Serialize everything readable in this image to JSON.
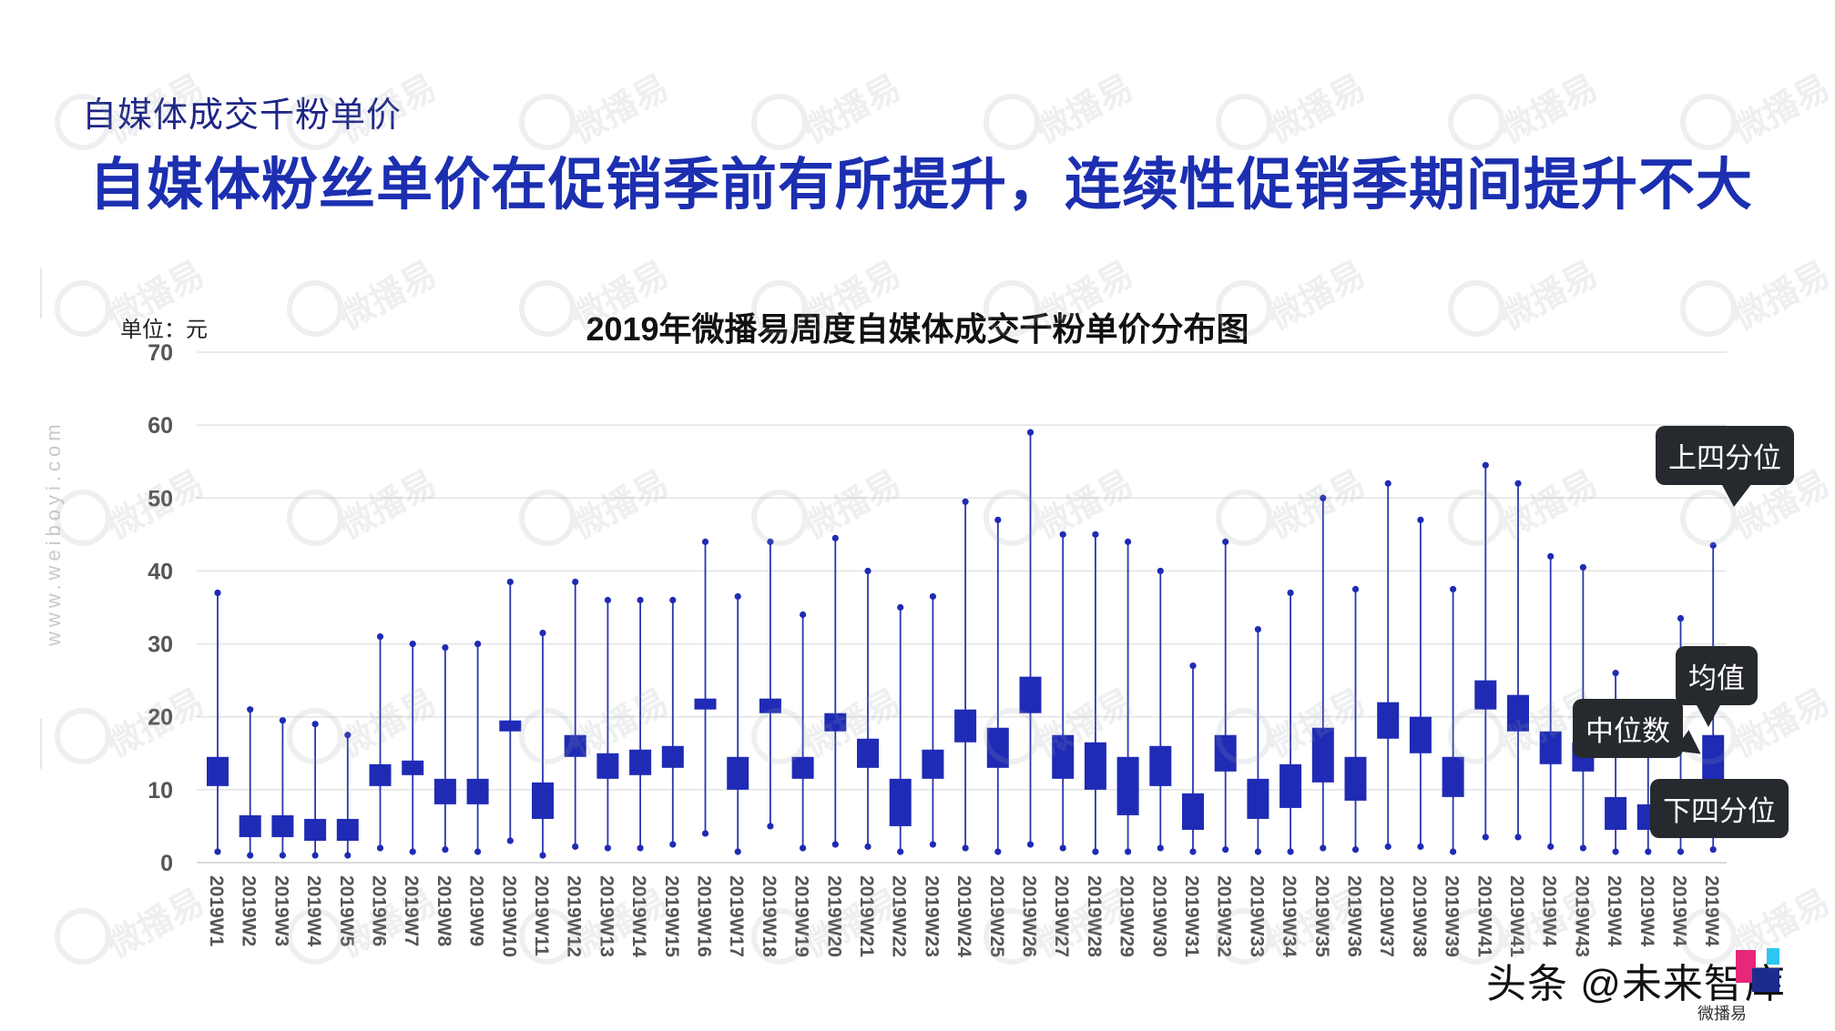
{
  "header": {
    "subtitle": "自媒体成交千粉单价",
    "headline": "自媒体粉丝单价在促销季前有所提升，连续性促销季期间提升不大"
  },
  "side_url": "www.weiboyi.com",
  "watermark_text": "微播易",
  "footer": {
    "brand": "头条 @未来智库",
    "small_text": "微播易"
  },
  "callouts": {
    "upper_quartile": "上四分位",
    "mean": "均值",
    "median": "中位数",
    "lower_quartile": "下四分位"
  },
  "colors": {
    "title_blue": "#1c2fb0",
    "box_fill": "#1f2bb5",
    "whisker": "#2a35b0",
    "grid": "#e3e3e3",
    "callout_bg": "#26292e"
  },
  "chart_data": {
    "type": "box",
    "title": "2019年微播易周度自媒体成交千粉单价分布图",
    "unit_label": "单位：元",
    "ylim": [
      0,
      70
    ],
    "yticks": [
      0,
      10,
      20,
      30,
      40,
      50,
      60,
      70
    ],
    "grid": true,
    "categories": [
      "2019W1",
      "2019W2",
      "2019W3",
      "2019W4",
      "2019W5",
      "2019W6",
      "2019W7",
      "2019W8",
      "2019W9",
      "2019W10",
      "2019W11",
      "2019W12",
      "2019W13",
      "2019W14",
      "2019W15",
      "2019W16",
      "2019W17",
      "2019W18",
      "2019W19",
      "2019W20",
      "2019W21",
      "2019W22",
      "2019W23",
      "2019W24",
      "2019W25",
      "2019W26",
      "2019W27",
      "2019W28",
      "2019W29",
      "2019W30",
      "2019W31",
      "2019W32",
      "2019W33",
      "2019W34",
      "2019W35",
      "2019W36",
      "2019W37",
      "2019W38",
      "2019W39",
      "2019W41",
      "2019W41",
      "2019W4",
      "2019W43",
      "2019W4",
      "2019W4",
      "2019W4",
      "2019W4"
    ],
    "min": [
      1.5,
      1.0,
      1.0,
      1.0,
      1.0,
      2.0,
      1.5,
      1.8,
      1.5,
      3.0,
      1.0,
      2.2,
      2.0,
      2.0,
      2.5,
      4.0,
      1.5,
      5.0,
      2.0,
      2.5,
      2.2,
      1.5,
      2.5,
      2.0,
      1.5,
      2.5,
      2.0,
      1.5,
      1.5,
      2.0,
      1.5,
      1.8,
      1.5,
      1.5,
      2.0,
      1.8,
      2.2,
      2.2,
      1.5,
      3.5,
      3.5,
      2.2,
      2.0,
      1.5,
      1.5,
      1.5,
      1.8
    ],
    "q1": [
      10.5,
      3.5,
      3.5,
      3.0,
      3.0,
      10.5,
      12.0,
      8.0,
      8.0,
      18.0,
      6.0,
      14.5,
      11.5,
      12.0,
      13.0,
      21.0,
      10.0,
      20.5,
      11.5,
      18.0,
      13.0,
      5.0,
      11.5,
      16.5,
      13.0,
      20.5,
      11.5,
      10.0,
      6.5,
      10.5,
      4.5,
      12.5,
      6.0,
      7.5,
      11.0,
      8.5,
      17.0,
      15.0,
      9.0,
      21.0,
      18.0,
      13.5,
      12.5,
      4.5,
      4.5,
      4.5,
      4.5
    ],
    "q3": [
      14.5,
      6.5,
      6.5,
      6.0,
      6.0,
      13.5,
      14.0,
      11.5,
      11.5,
      19.5,
      11.0,
      17.5,
      15.0,
      15.5,
      16.0,
      22.5,
      14.5,
      22.5,
      14.5,
      20.5,
      17.0,
      11.5,
      15.5,
      21.0,
      18.5,
      25.5,
      17.5,
      16.5,
      14.5,
      16.0,
      9.5,
      17.5,
      11.5,
      13.5,
      18.5,
      14.5,
      22.0,
      20.0,
      14.5,
      25.0,
      23.0,
      18.0,
      16.5,
      9.0,
      8.0,
      8.0,
      17.5
    ],
    "max": [
      37,
      21,
      19.5,
      19,
      17.5,
      31,
      30,
      29.5,
      30,
      38.5,
      31.5,
      38.5,
      36,
      36,
      36,
      44,
      36.5,
      44,
      34,
      44.5,
      40,
      35,
      36.5,
      49.5,
      47,
      59,
      45,
      45,
      44,
      40,
      27,
      44,
      32,
      37,
      50,
      37.5,
      52,
      47,
      37.5,
      54.5,
      52,
      42,
      40.5,
      26,
      21.5,
      33.5,
      43.5
    ]
  }
}
